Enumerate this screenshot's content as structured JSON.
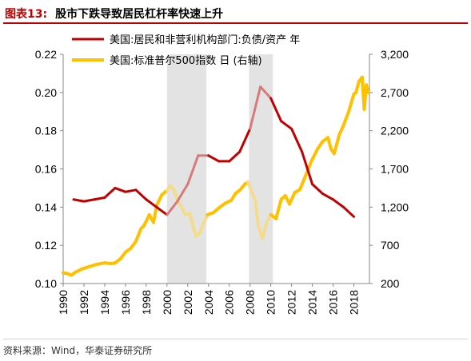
{
  "header": {
    "figure_label": "图表13:",
    "title": "股市下跌导致居民杠杆率快速上升"
  },
  "source": "资料来源：Wind，华泰证券研究所",
  "chart_data": {
    "type": "line",
    "x_range": [
      1990,
      2019.5
    ],
    "x_ticks": [
      "1990",
      "1992",
      "1994",
      "1996",
      "1998",
      "2000",
      "2002",
      "2004",
      "2006",
      "2008",
      "2010",
      "2012",
      "2014",
      "2016",
      "2018"
    ],
    "y_left": {
      "range": [
        0.1,
        0.22
      ],
      "ticks": [
        "0.10",
        "0.12",
        "0.14",
        "0.16",
        "0.18",
        "0.20",
        "0.22"
      ]
    },
    "y_right": {
      "range": [
        200,
        3200
      ],
      "ticks": [
        "200",
        "700",
        "1,200",
        "1,700",
        "2,200",
        "2,700",
        "3,200"
      ]
    },
    "shaded_periods": [
      [
        2000.0,
        2003.8
      ],
      [
        2007.9,
        2010.2
      ]
    ],
    "colors": {
      "leverage": "#c00000",
      "leverage_shaded": "#d77a7a",
      "sp500": "#ffc000",
      "sp500_shaded": "#f3dc8e",
      "shade": "#e3e3e3"
    },
    "series": [
      {
        "name": "美国:居民和非营利机构部门:负债/资产 年",
        "axis": "left",
        "x": [
          1991,
          1992,
          1993,
          1994,
          1995,
          1996,
          1997,
          1998,
          1999,
          2000,
          2001,
          2002,
          2003,
          2004,
          2005,
          2006,
          2007,
          2008,
          2009,
          2010,
          2011,
          2012,
          2013,
          2014,
          2015,
          2016,
          2017,
          2018
        ],
        "y": [
          0.144,
          0.143,
          0.144,
          0.145,
          0.15,
          0.148,
          0.149,
          0.144,
          0.14,
          0.136,
          0.143,
          0.152,
          0.167,
          0.167,
          0.164,
          0.164,
          0.169,
          0.181,
          0.203,
          0.197,
          0.185,
          0.181,
          0.169,
          0.152,
          0.147,
          0.144,
          0.14,
          0.135
        ]
      },
      {
        "name": "美国:标准普尔500指数 日 (右轴)",
        "axis": "right",
        "x": [
          1990.0,
          1990.4,
          1990.8,
          1991.2,
          1991.8,
          1992.5,
          1993.2,
          1994.0,
          1994.6,
          1995.0,
          1995.5,
          1996.0,
          1996.5,
          1997.0,
          1997.5,
          1997.8,
          1998.3,
          1998.7,
          1999.0,
          1999.5,
          2000.0,
          2000.3,
          2000.7,
          2001.0,
          2001.4,
          2001.8,
          2002.2,
          2002.6,
          2002.8,
          2003.1,
          2003.5,
          2003.9,
          2004.5,
          2005.0,
          2005.6,
          2006.2,
          2006.6,
          2007.0,
          2007.5,
          2007.8,
          2008.2,
          2008.5,
          2008.8,
          2009.2,
          2009.6,
          2010.0,
          2010.5,
          2011.0,
          2011.4,
          2011.8,
          2012.3,
          2012.8,
          2013.4,
          2013.9,
          2014.5,
          2015.0,
          2015.5,
          2015.8,
          2016.1,
          2016.6,
          2017.0,
          2017.5,
          2018.0,
          2018.2,
          2018.5,
          2018.8,
          2019.0,
          2019.2,
          2019.4
        ],
        "y": [
          340,
          330,
          310,
          350,
          390,
          420,
          450,
          470,
          460,
          470,
          520,
          610,
          660,
          750,
          920,
          960,
          1100,
          1000,
          1220,
          1360,
          1420,
          1480,
          1420,
          1300,
          1200,
          1100,
          1120,
          900,
          820,
          850,
          980,
          1100,
          1130,
          1190,
          1250,
          1290,
          1380,
          1420,
          1500,
          1530,
          1380,
          1290,
          950,
          790,
          1000,
          1100,
          1050,
          1300,
          1350,
          1240,
          1390,
          1430,
          1630,
          1800,
          1960,
          2060,
          2110,
          1960,
          1900,
          2150,
          2270,
          2450,
          2680,
          2700,
          2850,
          2900,
          2480,
          2800,
          2700
        ]
      }
    ]
  }
}
